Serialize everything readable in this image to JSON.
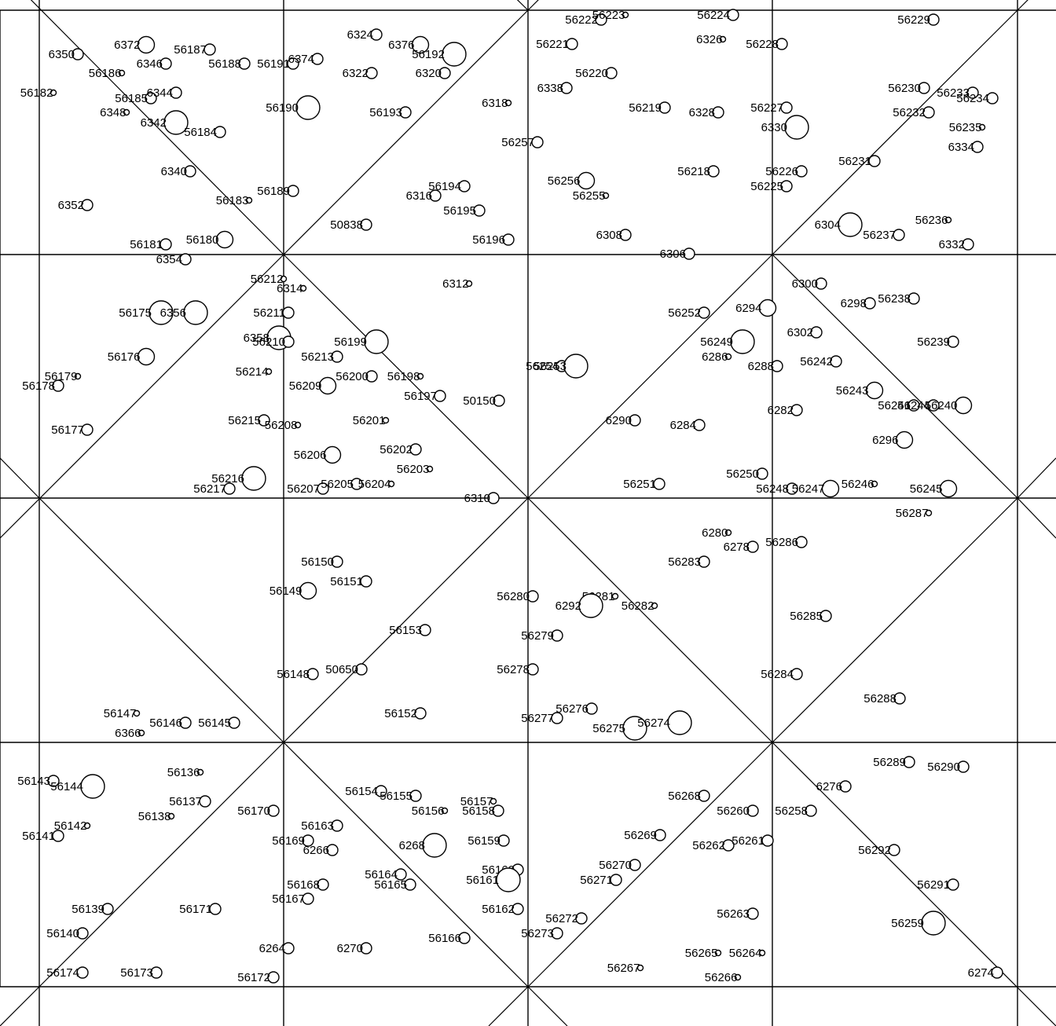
{
  "map": {
    "sites": [
      {
        "label": "6350",
        "size": "medium"
      },
      {
        "label": "6372",
        "size": "large"
      },
      {
        "label": "56187",
        "size": "medium"
      },
      {
        "label": "6346",
        "size": "medium"
      },
      {
        "label": "56188",
        "size": "medium"
      },
      {
        "label": "56186",
        "size": "tiny"
      },
      {
        "label": "56182",
        "size": "tiny"
      },
      {
        "label": "56185",
        "size": "medium"
      },
      {
        "label": "6344",
        "size": "medium"
      },
      {
        "label": "6348",
        "size": "tiny"
      },
      {
        "label": "6342",
        "size": "xlarge"
      },
      {
        "label": "56184",
        "size": "medium"
      },
      {
        "label": "6340",
        "size": "medium"
      },
      {
        "label": "56183",
        "size": "tiny"
      },
      {
        "label": "56189",
        "size": "medium"
      },
      {
        "label": "6352",
        "size": "medium"
      },
      {
        "label": "56181",
        "size": "medium"
      },
      {
        "label": "56180",
        "size": "large"
      },
      {
        "label": "6354",
        "size": "medium"
      },
      {
        "label": "6324",
        "size": "medium"
      },
      {
        "label": "6376",
        "size": "large"
      },
      {
        "label": "56192",
        "size": "xlarge"
      },
      {
        "label": "56191",
        "size": "medium"
      },
      {
        "label": "6374",
        "size": "medium"
      },
      {
        "label": "6322",
        "size": "medium"
      },
      {
        "label": "6320",
        "size": "medium"
      },
      {
        "label": "56190",
        "size": "xlarge"
      },
      {
        "label": "56193",
        "size": "medium"
      },
      {
        "label": "6318",
        "size": "tiny"
      },
      {
        "label": "56194",
        "size": "medium"
      },
      {
        "label": "6316",
        "size": "medium"
      },
      {
        "label": "56195",
        "size": "medium"
      },
      {
        "label": "50838",
        "size": "medium"
      },
      {
        "label": "56196",
        "size": "medium"
      },
      {
        "label": "56222",
        "size": "medium"
      },
      {
        "label": "56223",
        "size": "tiny"
      },
      {
        "label": "56221",
        "size": "medium"
      },
      {
        "label": "6338",
        "size": "medium"
      },
      {
        "label": "56220",
        "size": "medium"
      },
      {
        "label": "56257",
        "size": "medium"
      },
      {
        "label": "56256",
        "size": "large"
      },
      {
        "label": "56255",
        "size": "tiny"
      },
      {
        "label": "6308",
        "size": "medium"
      },
      {
        "label": "6306",
        "size": "medium"
      },
      {
        "label": "56224",
        "size": "medium"
      },
      {
        "label": "6326",
        "size": "tiny"
      },
      {
        "label": "56228",
        "size": "medium"
      },
      {
        "label": "56219",
        "size": "medium"
      },
      {
        "label": "6328",
        "size": "medium"
      },
      {
        "label": "56227",
        "size": "medium"
      },
      {
        "label": "6330",
        "size": "xlarge"
      },
      {
        "label": "56218",
        "size": "medium"
      },
      {
        "label": "56226",
        "size": "medium"
      },
      {
        "label": "56225",
        "size": "medium"
      },
      {
        "label": "56229",
        "size": "medium"
      },
      {
        "label": "56230",
        "size": "medium"
      },
      {
        "label": "56233",
        "size": "medium"
      },
      {
        "label": "56234",
        "size": "medium"
      },
      {
        "label": "56232",
        "size": "medium"
      },
      {
        "label": "56235",
        "size": "tiny"
      },
      {
        "label": "6334",
        "size": "medium"
      },
      {
        "label": "56231",
        "size": "medium"
      },
      {
        "label": "6304",
        "size": "xlarge"
      },
      {
        "label": "56237",
        "size": "medium"
      },
      {
        "label": "56236",
        "size": "tiny"
      },
      {
        "label": "6332",
        "size": "medium"
      },
      {
        "label": "56212",
        "size": "tiny"
      },
      {
        "label": "6314",
        "size": "tiny"
      },
      {
        "label": "56211",
        "size": "medium"
      },
      {
        "label": "6358",
        "size": "xlarge"
      },
      {
        "label": "56210",
        "size": "medium"
      },
      {
        "label": "56199",
        "size": "xlarge"
      },
      {
        "label": "56213",
        "size": "medium"
      },
      {
        "label": "56214",
        "size": "tiny"
      },
      {
        "label": "56200",
        "size": "medium"
      },
      {
        "label": "56198",
        "size": "tiny"
      },
      {
        "label": "56209",
        "size": "large"
      },
      {
        "label": "56197",
        "size": "medium"
      },
      {
        "label": "50150",
        "size": "medium"
      },
      {
        "label": "6312",
        "size": "tiny"
      },
      {
        "label": "56215",
        "size": "medium"
      },
      {
        "label": "56208",
        "size": "tiny"
      },
      {
        "label": "56201",
        "size": "tiny"
      },
      {
        "label": "56202",
        "size": "medium"
      },
      {
        "label": "56206",
        "size": "large"
      },
      {
        "label": "56203",
        "size": "tiny"
      },
      {
        "label": "56216",
        "size": "xlarge"
      },
      {
        "label": "56217",
        "size": "medium"
      },
      {
        "label": "56207",
        "size": "medium"
      },
      {
        "label": "56205",
        "size": "medium"
      },
      {
        "label": "56204",
        "size": "tiny"
      },
      {
        "label": "6310",
        "size": "medium"
      },
      {
        "label": "56175",
        "size": "xlarge"
      },
      {
        "label": "6356",
        "size": "xlarge"
      },
      {
        "label": "56176",
        "size": "large"
      },
      {
        "label": "56179",
        "size": "tiny"
      },
      {
        "label": "56178",
        "size": "medium"
      },
      {
        "label": "56177",
        "size": "medium"
      },
      {
        "label": "56254",
        "size": "medium"
      },
      {
        "label": "56253",
        "size": "xlarge"
      },
      {
        "label": "6300",
        "size": "medium"
      },
      {
        "label": "6298",
        "size": "medium"
      },
      {
        "label": "56238",
        "size": "medium"
      },
      {
        "label": "56252",
        "size": "medium"
      },
      {
        "label": "6294",
        "size": "large"
      },
      {
        "label": "6302",
        "size": "medium"
      },
      {
        "label": "56239",
        "size": "medium"
      },
      {
        "label": "56249",
        "size": "xlarge"
      },
      {
        "label": "6286",
        "size": "tiny"
      },
      {
        "label": "6288",
        "size": "medium"
      },
      {
        "label": "56242",
        "size": "medium"
      },
      {
        "label": "56243",
        "size": "large"
      },
      {
        "label": "56241",
        "size": "medium"
      },
      {
        "label": "56244",
        "size": "medium"
      },
      {
        "label": "56240",
        "size": "large"
      },
      {
        "label": "6290",
        "size": "medium"
      },
      {
        "label": "6284",
        "size": "medium"
      },
      {
        "label": "6282",
        "size": "medium"
      },
      {
        "label": "6296",
        "size": "large"
      },
      {
        "label": "56250",
        "size": "medium"
      },
      {
        "label": "56251",
        "size": "medium"
      },
      {
        "label": "56248",
        "size": "medium"
      },
      {
        "label": "56247",
        "size": "large"
      },
      {
        "label": "56246",
        "size": "tiny"
      },
      {
        "label": "56245",
        "size": "large"
      },
      {
        "label": "56287",
        "size": "tiny"
      },
      {
        "label": "56150",
        "size": "medium"
      },
      {
        "label": "56151",
        "size": "medium"
      },
      {
        "label": "56149",
        "size": "large"
      },
      {
        "label": "56153",
        "size": "medium"
      },
      {
        "label": "56148",
        "size": "medium"
      },
      {
        "label": "50650",
        "size": "medium"
      },
      {
        "label": "56152",
        "size": "medium"
      },
      {
        "label": "56147",
        "size": "tiny"
      },
      {
        "label": "56146",
        "size": "medium"
      },
      {
        "label": "56145",
        "size": "medium"
      },
      {
        "label": "6366",
        "size": "tiny"
      },
      {
        "label": "6280",
        "size": "tiny"
      },
      {
        "label": "6278",
        "size": "medium"
      },
      {
        "label": "56286",
        "size": "medium"
      },
      {
        "label": "56283",
        "size": "medium"
      },
      {
        "label": "56280",
        "size": "medium"
      },
      {
        "label": "56281",
        "size": "tiny"
      },
      {
        "label": "6292",
        "size": "xlarge"
      },
      {
        "label": "56282",
        "size": "tiny"
      },
      {
        "label": "56285",
        "size": "medium"
      },
      {
        "label": "56279",
        "size": "medium"
      },
      {
        "label": "56278",
        "size": "medium"
      },
      {
        "label": "56284",
        "size": "medium"
      },
      {
        "label": "56276",
        "size": "medium"
      },
      {
        "label": "56277",
        "size": "medium"
      },
      {
        "label": "56288",
        "size": "medium"
      },
      {
        "label": "56275",
        "size": "xlarge"
      },
      {
        "label": "56274",
        "size": "xlarge"
      },
      {
        "label": "56143",
        "size": "medium"
      },
      {
        "label": "56144",
        "size": "xlarge"
      },
      {
        "label": "56136",
        "size": "tiny"
      },
      {
        "label": "56137",
        "size": "medium"
      },
      {
        "label": "56138",
        "size": "tiny"
      },
      {
        "label": "56142",
        "size": "tiny"
      },
      {
        "label": "56141",
        "size": "medium"
      },
      {
        "label": "56170",
        "size": "medium"
      },
      {
        "label": "56139",
        "size": "medium"
      },
      {
        "label": "56171",
        "size": "medium"
      },
      {
        "label": "56140",
        "size": "medium"
      },
      {
        "label": "56174",
        "size": "medium"
      },
      {
        "label": "56173",
        "size": "medium"
      },
      {
        "label": "56172",
        "size": "medium"
      },
      {
        "label": "6264",
        "size": "medium"
      },
      {
        "label": "56154",
        "size": "medium"
      },
      {
        "label": "56155",
        "size": "medium"
      },
      {
        "label": "56157",
        "size": "tiny"
      },
      {
        "label": "56156",
        "size": "tiny"
      },
      {
        "label": "56158",
        "size": "medium"
      },
      {
        "label": "56163",
        "size": "medium"
      },
      {
        "label": "56169",
        "size": "medium"
      },
      {
        "label": "6266",
        "size": "medium"
      },
      {
        "label": "6268",
        "size": "xlarge"
      },
      {
        "label": "56159",
        "size": "medium"
      },
      {
        "label": "56160",
        "size": "medium"
      },
      {
        "label": "56161",
        "size": "xlarge"
      },
      {
        "label": "56164",
        "size": "medium"
      },
      {
        "label": "56165",
        "size": "medium"
      },
      {
        "label": "56168",
        "size": "medium"
      },
      {
        "label": "56167",
        "size": "medium"
      },
      {
        "label": "56162",
        "size": "medium"
      },
      {
        "label": "56166",
        "size": "medium"
      },
      {
        "label": "6270",
        "size": "medium"
      },
      {
        "label": "56272",
        "size": "medium"
      },
      {
        "label": "56273",
        "size": "medium"
      },
      {
        "label": "56268",
        "size": "medium"
      },
      {
        "label": "56260",
        "size": "medium"
      },
      {
        "label": "56258",
        "size": "medium"
      },
      {
        "label": "56269",
        "size": "medium"
      },
      {
        "label": "56262",
        "size": "medium"
      },
      {
        "label": "56261",
        "size": "medium"
      },
      {
        "label": "56270",
        "size": "medium"
      },
      {
        "label": "56271",
        "size": "medium"
      },
      {
        "label": "56263",
        "size": "medium"
      },
      {
        "label": "56265",
        "size": "tiny"
      },
      {
        "label": "56264",
        "size": "tiny"
      },
      {
        "label": "56267",
        "size": "tiny"
      },
      {
        "label": "56266",
        "size": "tiny"
      },
      {
        "label": "56289",
        "size": "medium"
      },
      {
        "label": "56290",
        "size": "medium"
      },
      {
        "label": "6276",
        "size": "medium"
      },
      {
        "label": "56292",
        "size": "medium"
      },
      {
        "label": "56291",
        "size": "medium"
      },
      {
        "label": "56259",
        "size": "xlarge"
      },
      {
        "label": "6274",
        "size": "medium"
      }
    ]
  }
}
